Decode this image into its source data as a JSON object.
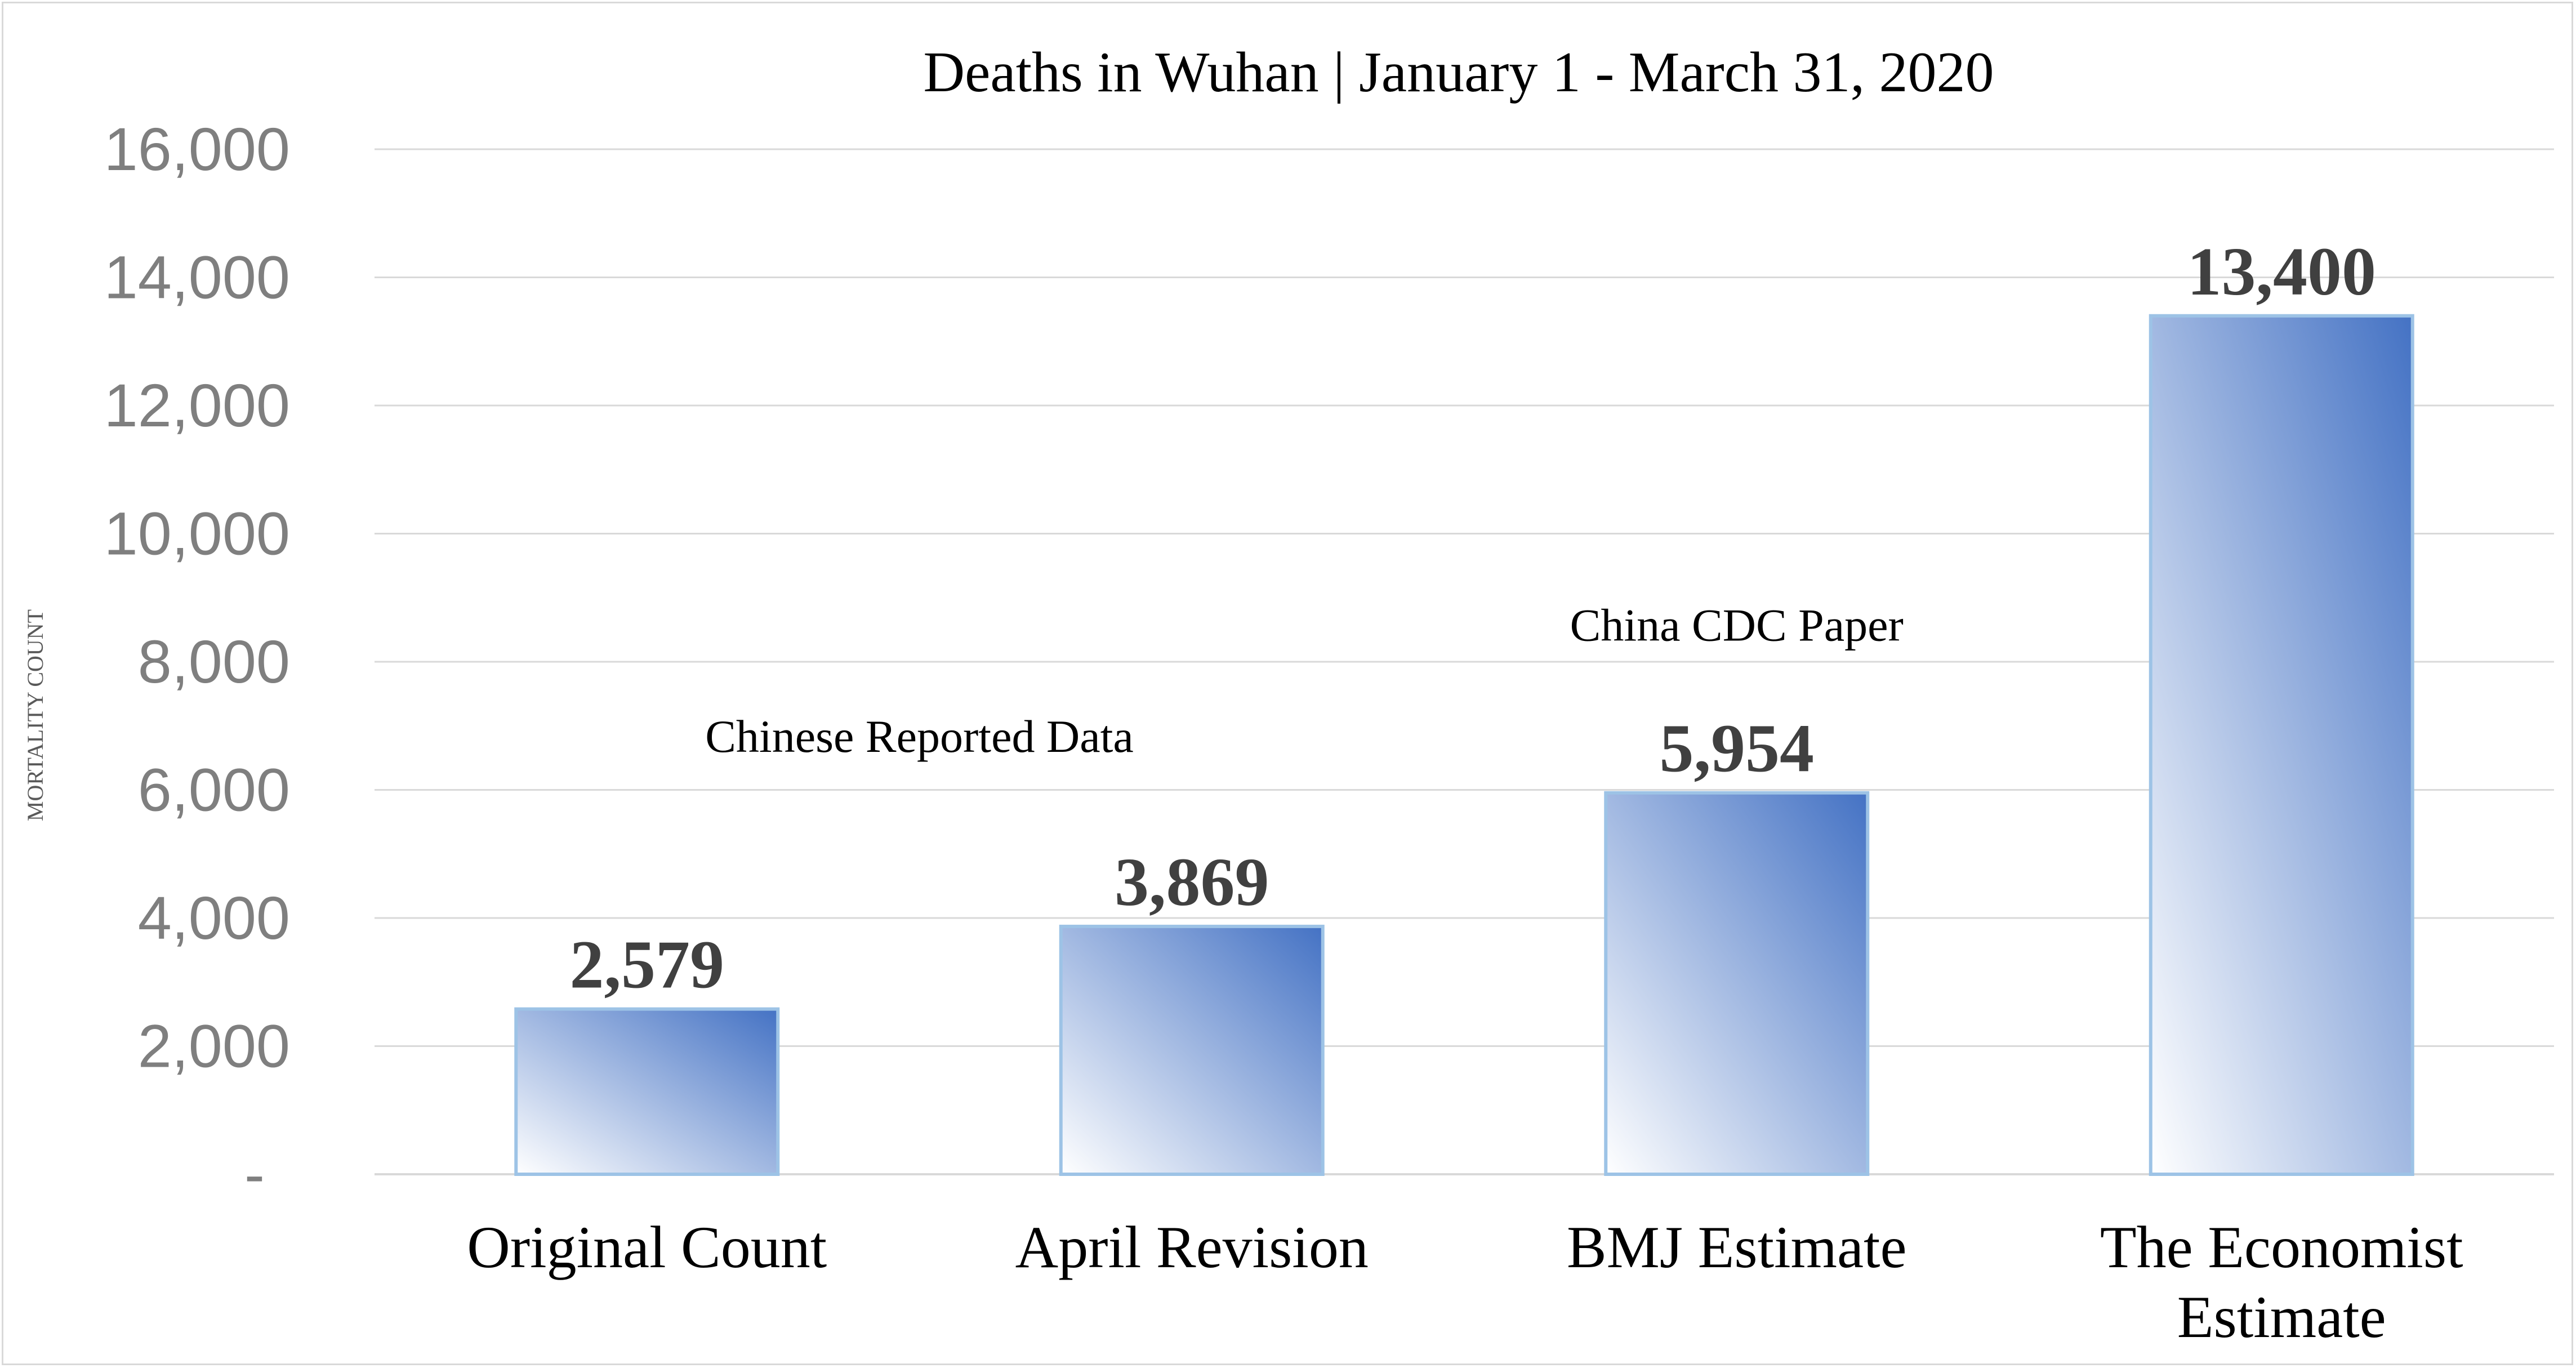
{
  "chart_data": {
    "type": "bar",
    "title": "Deaths in Wuhan | January 1 - March 31, 2020",
    "ylabel": "MORTALITY COUNT",
    "xlabel": "",
    "ylim": [
      0,
      16000
    ],
    "yticks": [
      {
        "value": 0,
        "label": "-"
      },
      {
        "value": 2000,
        "label": "2,000"
      },
      {
        "value": 4000,
        "label": "4,000"
      },
      {
        "value": 6000,
        "label": "6,000"
      },
      {
        "value": 8000,
        "label": "8,000"
      },
      {
        "value": 10000,
        "label": "10,000"
      },
      {
        "value": 12000,
        "label": "12,000"
      },
      {
        "value": 14000,
        "label": "14,000"
      },
      {
        "value": 16000,
        "label": "16,000"
      }
    ],
    "grid": true,
    "categories": [
      [
        "Original Count"
      ],
      [
        "April Revision"
      ],
      [
        "BMJ Estimate"
      ],
      [
        "The Economist",
        "Estimate"
      ]
    ],
    "values": [
      2579,
      3869,
      5954,
      13400
    ],
    "value_labels": [
      "2,579",
      "3,869",
      "5,954",
      "13,400"
    ],
    "annotations": [
      {
        "text": "Chinese Reported Data",
        "near_categories": [
          0,
          1
        ]
      },
      {
        "text": "China CDC Paper",
        "near_categories": [
          2
        ]
      }
    ],
    "colors": {
      "bar_gradient_dark": "#4472c4",
      "bar_gradient_light": "#ffffff",
      "bar_outline": "#9dc3e6",
      "gridline": "#d9d9d9",
      "tick_label": "#7f7f7f",
      "value_label": "#404040"
    }
  }
}
